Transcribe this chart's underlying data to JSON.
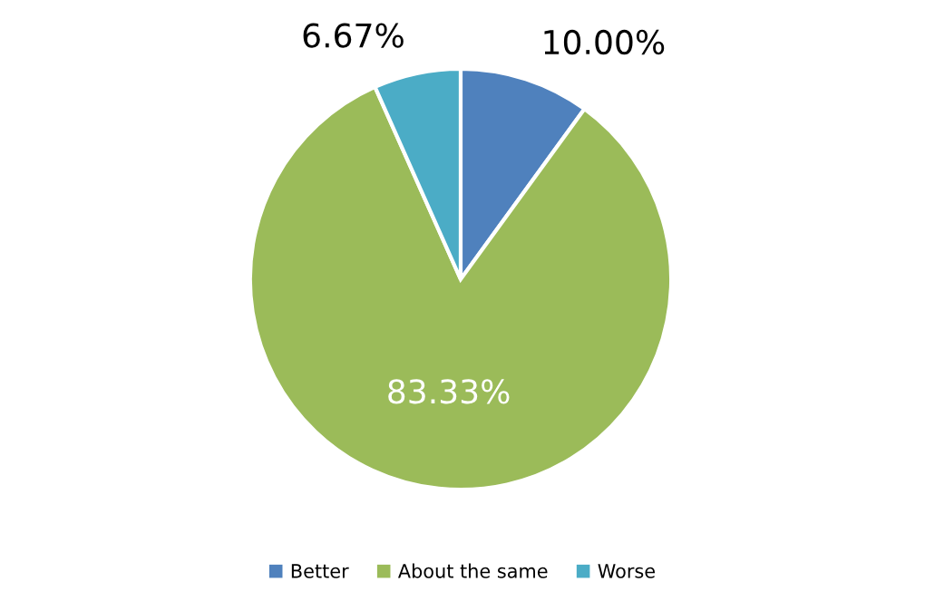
{
  "chart_data": {
    "type": "pie",
    "categories": [
      "Better",
      "About the same",
      "Worse"
    ],
    "values": [
      10,
      83.33,
      6.67
    ],
    "colors": [
      "#4f81bd",
      "#9bbb59",
      "#4bacc6"
    ],
    "value_labels": [
      "10.00%",
      "83.33%",
      "6.67%"
    ],
    "legend": "bottom"
  }
}
